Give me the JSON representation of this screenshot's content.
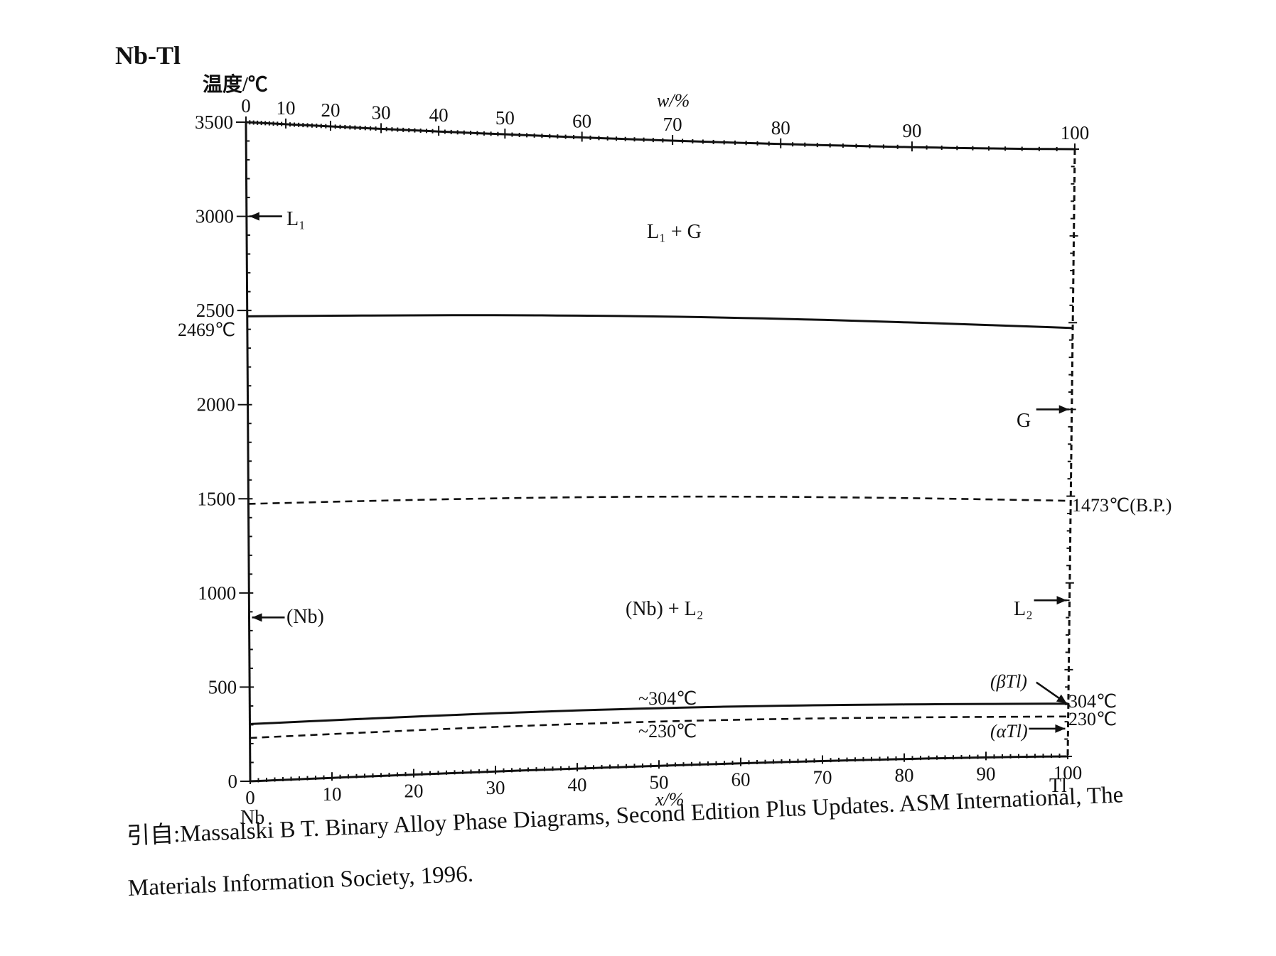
{
  "system_title": "Nb-Tl",
  "axes": {
    "y_label": "温度/℃",
    "top_label": "w/%",
    "bottom_label": "x/%",
    "y_ticks": [
      "0",
      "500",
      "1000",
      "1500",
      "2000",
      "2500",
      "3000",
      "3500"
    ],
    "top_ticks": [
      "0",
      "10",
      "20",
      "30",
      "40",
      "50",
      "60",
      "70",
      "80",
      "90",
      "100"
    ],
    "bottom_ticks": [
      "0",
      "10",
      "20",
      "30",
      "40",
      "50",
      "60",
      "70",
      "80",
      "90",
      "100"
    ],
    "left_element": "Nb",
    "right_element": "Tl"
  },
  "regions": {
    "upper": "L₁ + G",
    "lower": "(Nb) + L₂"
  },
  "annotations": {
    "nb_melting": "2469℃",
    "boiling": "1473℃(B.P.)",
    "trans_304": "~304℃",
    "trans_230": "~230℃",
    "right_304": "304℃",
    "right_230": "230℃",
    "arrow_L1": "L₁",
    "arrow_Nb": "(Nb)",
    "arrow_G": "G",
    "arrow_L2": "L₂",
    "arrow_betaTl": "(βTl)",
    "arrow_alphaTl": "(αTl)"
  },
  "citation": {
    "line1": "引自:Massalski B T.  Binary Alloy Phase Diagrams, Second Edition Plus Updates. ASM International, The",
    "line2": "Materials Information Society, 1996."
  },
  "chart_data": {
    "type": "line",
    "ylim": [
      0,
      3500
    ],
    "xlim": [
      0,
      100
    ],
    "series": [
      {
        "style": "solid",
        "x": [
          0,
          100
        ],
        "y": [
          2469,
          2469
        ]
      },
      {
        "style": "dashed",
        "x": [
          0,
          100
        ],
        "y": [
          1473,
          1473
        ]
      },
      {
        "style": "solid",
        "x": [
          0,
          100
        ],
        "y": [
          304,
          304
        ]
      },
      {
        "style": "dashed",
        "x": [
          0,
          100
        ],
        "y": [
          230,
          230
        ]
      }
    ],
    "points": [
      {
        "x": 0,
        "y": 3000
      },
      {
        "x": 0,
        "y": 870
      },
      {
        "x": 100,
        "y": 2000
      },
      {
        "x": 100,
        "y": 900
      }
    ]
  }
}
